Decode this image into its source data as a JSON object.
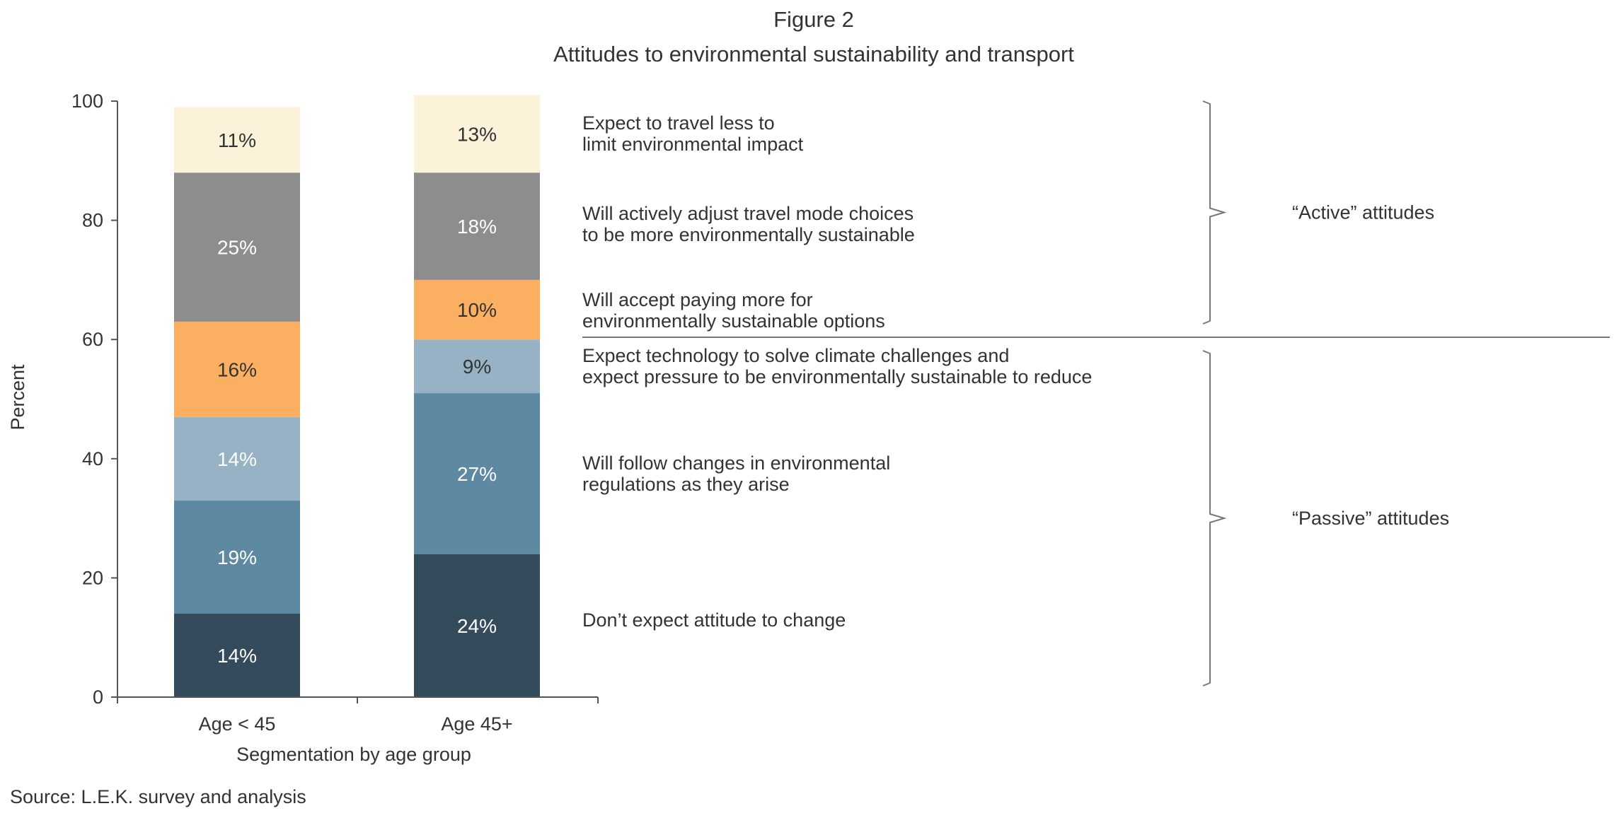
{
  "figure_label": "Figure 2",
  "source": "Source: L.E.K. survey and analysis",
  "chart_data": {
    "type": "bar",
    "stacked": true,
    "title": "Attitudes to environmental sustainability and transport",
    "xlabel": "Segmentation by age group",
    "ylabel": "Percent",
    "ylim": [
      0,
      100
    ],
    "yticks": [
      "0",
      "20",
      "40",
      "60",
      "80",
      "100"
    ],
    "categories": [
      "Age < 45",
      "Age 45+"
    ],
    "series": [
      {
        "name": "Don’t expect attitude to change",
        "color": "#334b5b",
        "values": [
          14,
          24
        ],
        "labels": [
          "14%",
          "24%"
        ],
        "label_color": "#ffffff"
      },
      {
        "name": "Will follow changes in environmental regulations as they arise",
        "color": "#5e89a3",
        "values": [
          19,
          27
        ],
        "labels": [
          "19%",
          "27%"
        ],
        "label_color": "#ffffff"
      },
      {
        "name": "Expect technology to solve climate challenges and expect pressure to be environmentally sustainable to reduce",
        "color": "#97b2c4",
        "values": [
          14,
          9
        ],
        "labels": [
          "14%",
          "9%"
        ],
        "label_color": "#ffffff",
        "label_color_alt": "#333333"
      },
      {
        "name": "Will accept paying more for environmentally sustainable options",
        "color": "#fbb061",
        "values": [
          16,
          10
        ],
        "labels": [
          "16%",
          "10%"
        ],
        "label_color": "#333333"
      },
      {
        "name": "Will actively adjust travel mode choices to be more environmentally sustainable",
        "color": "#8d8d8d",
        "values": [
          25,
          18
        ],
        "labels": [
          "25%",
          "18%"
        ],
        "label_color": "#ffffff"
      },
      {
        "name": "Expect to travel less to limit environmental impact",
        "color": "#fcf1d9",
        "values": [
          11,
          13
        ],
        "labels": [
          "11%",
          "13%"
        ],
        "label_color": "#333333"
      }
    ],
    "legend_lines": [
      [
        "Don’t expect attitude to change"
      ],
      [
        "Will follow changes in environmental",
        "regulations as they arise"
      ],
      [
        "Expect technology to solve climate challenges and",
        "expect pressure to be environmentally sustainable to reduce"
      ],
      [
        "Will accept paying more for",
        "environmentally sustainable options"
      ],
      [
        "Will actively adjust travel mode choices",
        "to be more environmentally sustainable"
      ],
      [
        "Expect to travel less to",
        "limit environmental impact"
      ]
    ],
    "groups": [
      {
        "label": "“Active” attitudes",
        "series_index": [
          3,
          4,
          5
        ]
      },
      {
        "label": "“Passive” attitudes",
        "series_index": [
          0,
          1,
          2
        ]
      }
    ]
  }
}
